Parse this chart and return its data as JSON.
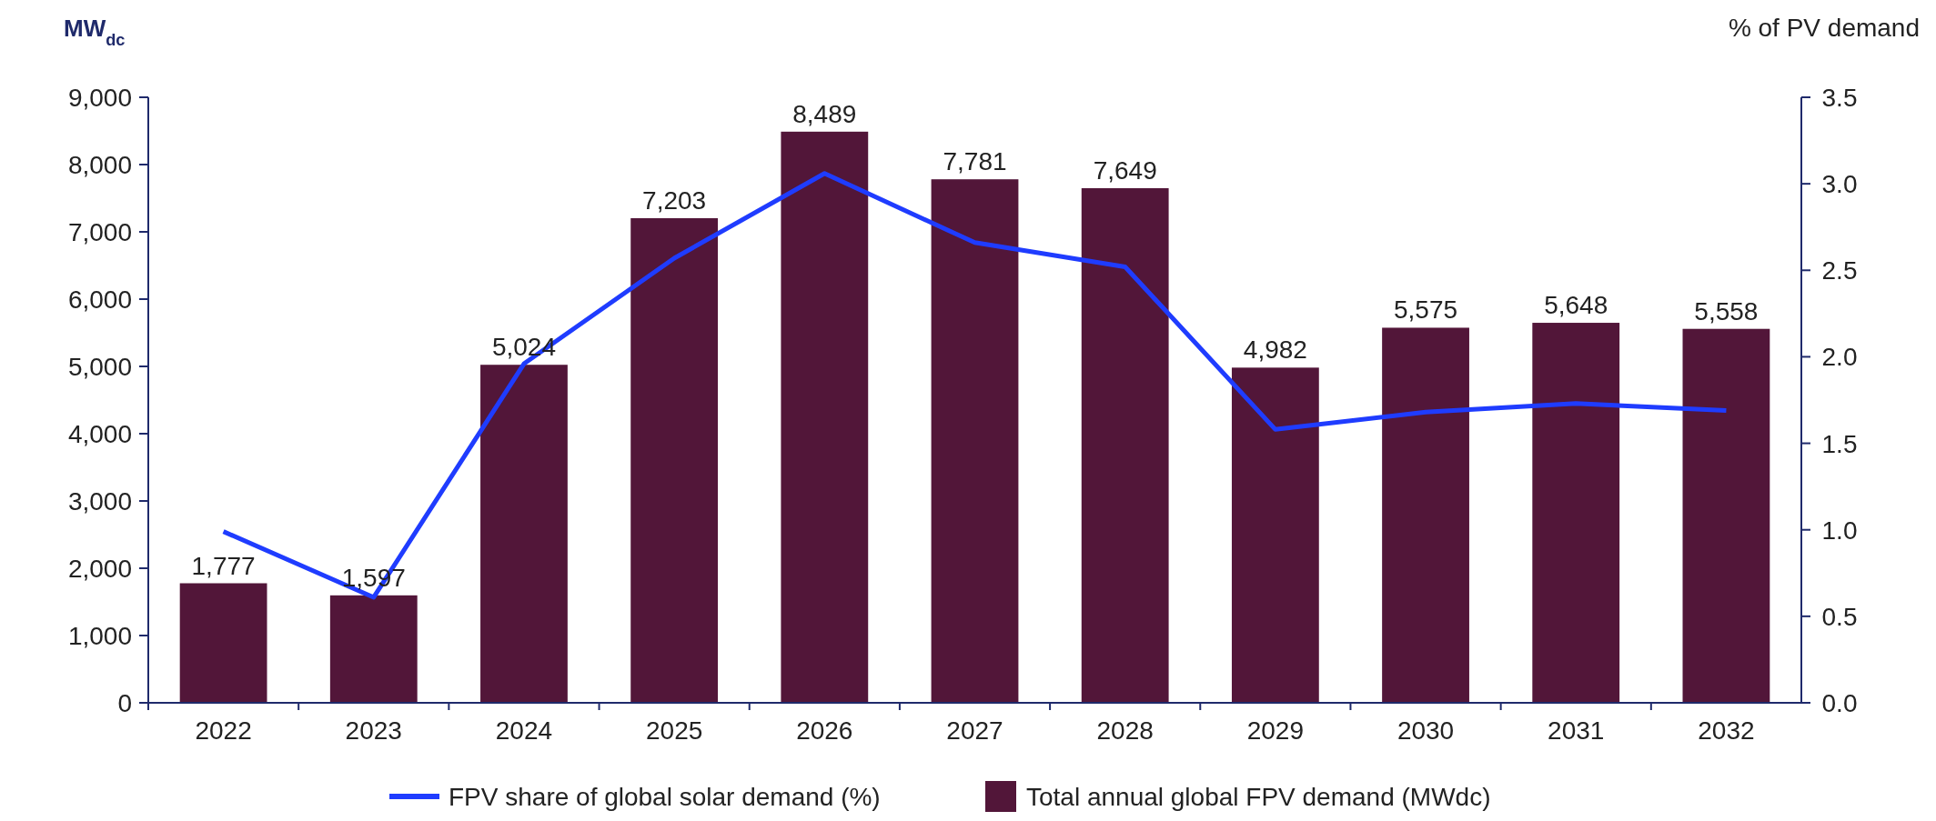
{
  "chart_data": {
    "type": "bar",
    "ylabel": "MW$_{dc}$",
    "y2label": "% of PV demand",
    "categories": [
      "2022",
      "2023",
      "2024",
      "2025",
      "2026",
      "2027",
      "2028",
      "2029",
      "2030",
      "2031",
      "2032"
    ],
    "series": [
      {
        "name": "FPV share of global solar demand (%)",
        "type": "line",
        "axis": "y2",
        "color": "#1f3cff",
        "values": [
          0.99,
          0.61,
          1.96,
          2.57,
          3.06,
          2.66,
          2.52,
          1.58,
          1.68,
          1.73,
          1.69
        ]
      },
      {
        "name": "Total annual global FPV demand (MWdc)",
        "color": "#521639",
        "values": [
          1777,
          1597,
          5024,
          7203,
          8489,
          7781,
          7649,
          4982,
          5575,
          5648,
          5558
        ],
        "value_labels": [
          "1,777",
          "1,597",
          "5,024",
          "7,203",
          "8,489",
          "7,781",
          "7,649",
          "4,982",
          "5,575",
          "5,648",
          "5,558"
        ]
      }
    ],
    "ylim": [
      0,
      9000
    ],
    "yticks": [
      {
        "value": 0,
        "label": "0"
      },
      {
        "value": 1000,
        "label": "1,000"
      },
      {
        "value": 2000,
        "label": "2,000"
      },
      {
        "value": 3000,
        "label": "3,000"
      },
      {
        "value": 4000,
        "label": "4,000"
      },
      {
        "value": 5000,
        "label": "5,000"
      },
      {
        "value": 6000,
        "label": "6,000"
      },
      {
        "value": 7000,
        "label": "7,000"
      },
      {
        "value": 8000,
        "label": "8,000"
      },
      {
        "value": 9000,
        "label": "9,000"
      }
    ],
    "y2lim": [
      0,
      3.5
    ],
    "y2ticks": [
      {
        "value": 0,
        "label": "0.0"
      },
      {
        "value": 0.5,
        "label": "0.5"
      },
      {
        "value": 1,
        "label": "1.0"
      },
      {
        "value": 1.5,
        "label": "1.5"
      },
      {
        "value": 2,
        "label": "2.0"
      },
      {
        "value": 2.5,
        "label": "2.5"
      },
      {
        "value": 3,
        "label": "3.0"
      },
      {
        "value": 3.5,
        "label": "3.5"
      }
    ],
    "legend": "bottom",
    "marker": "none",
    "line_style": "solid"
  }
}
